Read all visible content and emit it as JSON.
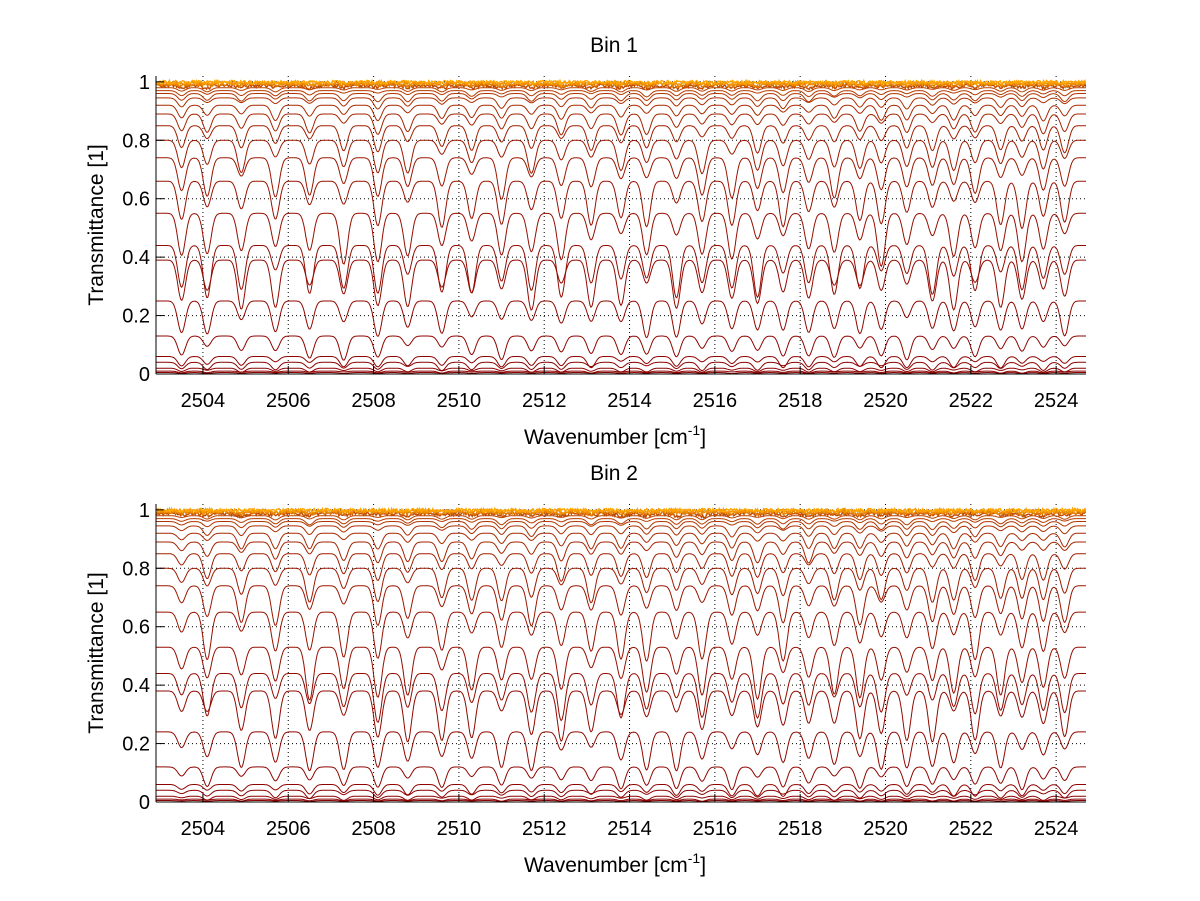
{
  "chart_data": [
    {
      "type": "line",
      "title": "Bin 1",
      "xlabel": {
        "base": "Wavenumber [cm",
        "sup": "-1",
        "tail": "]"
      },
      "ylabel": "Transmittance [1]",
      "xlim": [
        2502.9,
        2524.7
      ],
      "ylim": [
        0,
        1.02
      ],
      "x_ticks": [
        2504,
        2506,
        2508,
        2510,
        2512,
        2514,
        2516,
        2518,
        2520,
        2522,
        2524
      ],
      "y_ticks": [
        0,
        0.2,
        0.4,
        0.6,
        0.8,
        1
      ],
      "y_tick_labels": [
        "0",
        "0.2",
        "0.4",
        "0.6",
        "0.8",
        "1"
      ],
      "grid": true,
      "grid_style": "dotted",
      "series_color_start": "#8b0000",
      "series_color_end": "#ffa500",
      "series_baselines": [
        0.0,
        0.005,
        0.01,
        0.02,
        0.04,
        0.06,
        0.13,
        0.25,
        0.39,
        0.44,
        0.55,
        0.66,
        0.74,
        0.8,
        0.85,
        0.89,
        0.92,
        0.945,
        0.96,
        0.97,
        0.98,
        0.987,
        0.992,
        0.996,
        0.999
      ],
      "absorption_lines": [
        2503.5,
        2504.1,
        2504.9,
        2505.7,
        2506.5,
        2507.3,
        2508.1,
        2508.8,
        2509.6,
        2510.3,
        2511.0,
        2511.7,
        2512.4,
        2513.1,
        2513.8,
        2514.4,
        2515.1,
        2515.7,
        2516.4,
        2517.0,
        2517.6,
        2518.2,
        2518.8,
        2519.4,
        2519.9,
        2520.5,
        2521.1,
        2521.6,
        2522.1,
        2522.7,
        2523.2,
        2523.7,
        2524.2
      ],
      "line_depth_fraction": 0.16
    },
    {
      "type": "line",
      "title": "Bin 2",
      "xlabel": {
        "base": "Wavenumber [cm",
        "sup": "-1",
        "tail": "]"
      },
      "ylabel": "Transmittance [1]",
      "xlim": [
        2502.9,
        2524.7
      ],
      "ylim": [
        0,
        1.02
      ],
      "x_ticks": [
        2504,
        2506,
        2508,
        2510,
        2512,
        2514,
        2516,
        2518,
        2520,
        2522,
        2524
      ],
      "y_ticks": [
        0,
        0.2,
        0.4,
        0.6,
        0.8,
        1
      ],
      "y_tick_labels": [
        "0",
        "0.2",
        "0.4",
        "0.6",
        "0.8",
        "1"
      ],
      "grid": true,
      "grid_style": "dotted",
      "series_color_start": "#8b0000",
      "series_color_end": "#ffa500",
      "series_baselines": [
        0.0,
        0.005,
        0.01,
        0.02,
        0.04,
        0.06,
        0.12,
        0.24,
        0.38,
        0.44,
        0.53,
        0.65,
        0.74,
        0.8,
        0.85,
        0.89,
        0.92,
        0.945,
        0.96,
        0.97,
        0.98,
        0.987,
        0.992,
        0.996,
        0.999
      ],
      "absorption_lines": [
        2503.5,
        2504.1,
        2504.9,
        2505.7,
        2506.5,
        2507.3,
        2508.1,
        2508.8,
        2509.6,
        2510.3,
        2511.0,
        2511.7,
        2512.4,
        2513.1,
        2513.8,
        2514.4,
        2515.1,
        2515.7,
        2516.4,
        2517.0,
        2517.6,
        2518.2,
        2518.8,
        2519.4,
        2519.9,
        2520.5,
        2521.1,
        2521.6,
        2522.1,
        2522.7,
        2523.2,
        2523.7,
        2524.2
      ],
      "line_depth_fraction": 0.16
    }
  ]
}
